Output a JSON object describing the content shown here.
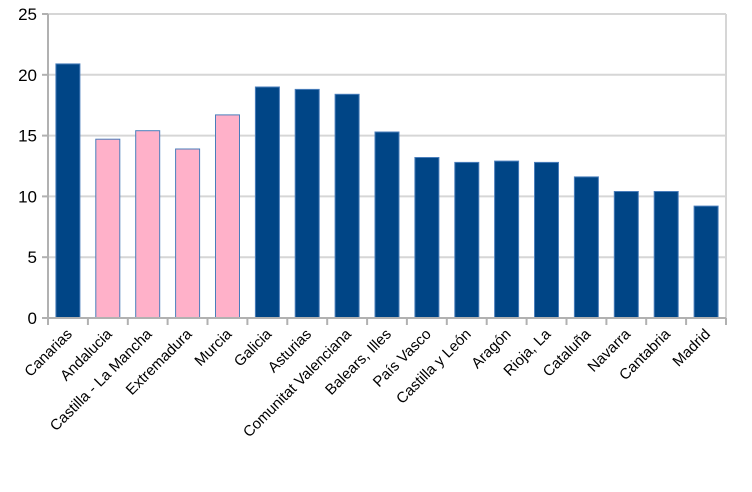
{
  "chart_data": {
    "type": "bar",
    "title": "",
    "xlabel": "",
    "ylabel": "",
    "categories": [
      "Canarias",
      "Andalucia",
      "Castilla - La Mancha",
      "Extremadura",
      "Murcia",
      "Galicia",
      "Asturias",
      "Comunitat Valenciana",
      "Balears, Illes",
      "País Vasco",
      "Castilla y León",
      "Aragón",
      "Rioja, La",
      "Cataluña",
      "Navarra",
      "Cantabria",
      "Madrid"
    ],
    "values": [
      20.9,
      14.7,
      15.4,
      13.9,
      16.7,
      19.0,
      18.8,
      18.4,
      15.3,
      13.2,
      12.8,
      12.9,
      12.8,
      11.6,
      10.4,
      10.4,
      9.2
    ],
    "highlighted_categories": [
      "Andalucia",
      "Castilla - La Mancha",
      "Extremadura",
      "Murcia"
    ],
    "ylim": [
      0,
      25
    ],
    "yticks": [
      0,
      5,
      10,
      15,
      20,
      25
    ],
    "grid": true,
    "legend": false,
    "x_label_rotation_deg": 45,
    "tick_marks_between_categories": true,
    "colors": {
      "bar_fill": "#004586",
      "bar_highlight_fill": "#ffb1c9",
      "bar_border": "#4a7ebb",
      "gridline": "#d6d6d6",
      "axis_line": "#b1b1b1",
      "plot_border": "#d6d6d6",
      "label_text": "#000000",
      "background": "#ffffff"
    }
  }
}
